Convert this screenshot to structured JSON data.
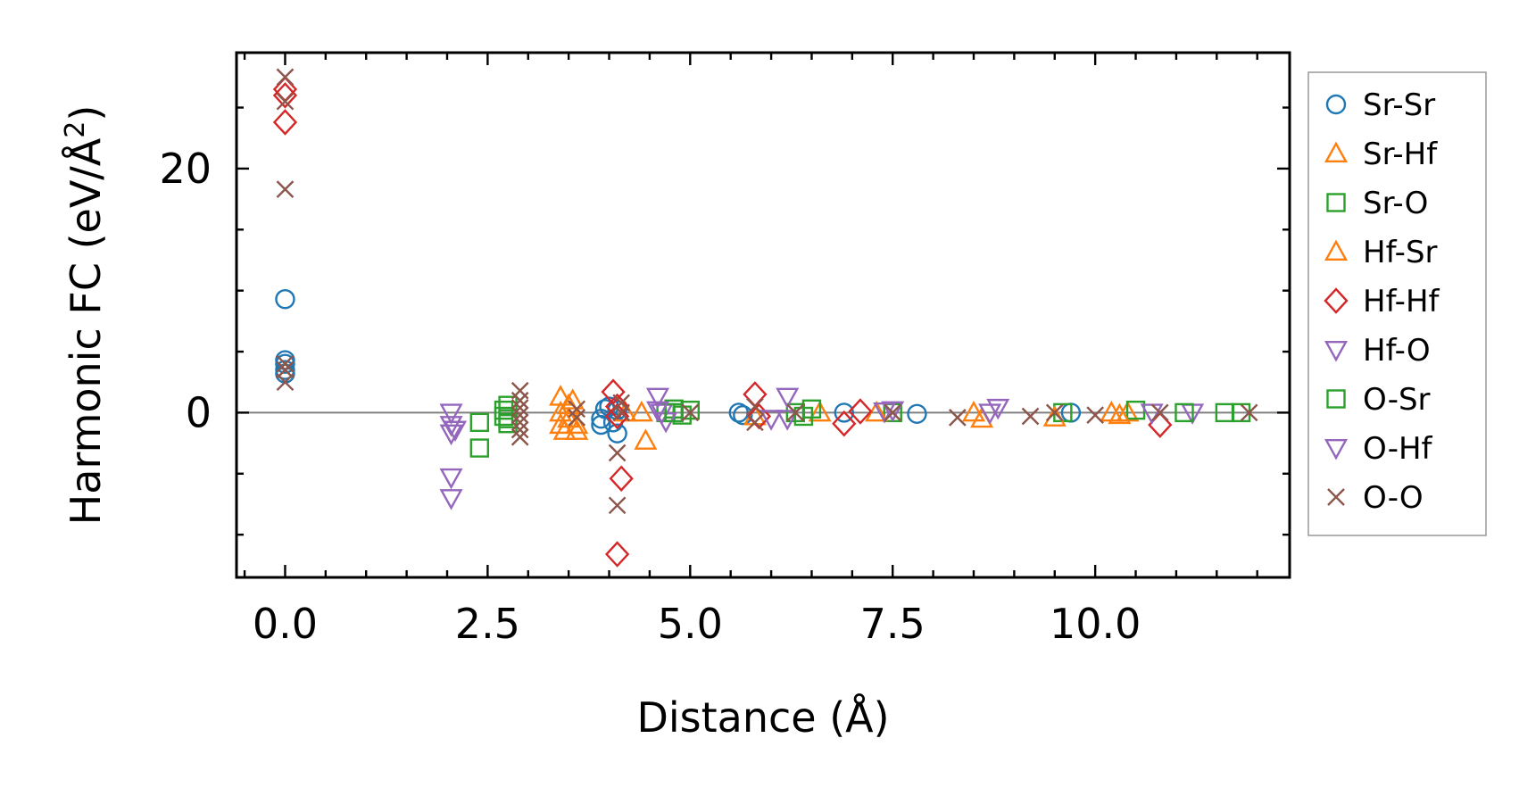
{
  "chart_data": {
    "type": "scatter",
    "xlabel": "Distance (Å)",
    "ylabel_prefix": "Harmonic FC (eV/Å",
    "ylabel_sup": "2",
    "ylabel_suffix": ")",
    "xlim": [
      -0.6,
      12.4
    ],
    "ylim": [
      -13.5,
      29.5
    ],
    "xticks": [
      0.0,
      2.5,
      5.0,
      7.5,
      10.0
    ],
    "xtick_labels": [
      "0.0",
      "2.5",
      "5.0",
      "7.5",
      "10.0"
    ],
    "yticks": [
      0,
      20
    ],
    "ytick_labels": [
      "0",
      "20"
    ],
    "zero_line": 0,
    "legend_position": "outside-right",
    "series": [
      {
        "name": "Sr-Sr",
        "marker": "circle",
        "color": "#1f77b4",
        "points": [
          [
            0,
            9.3
          ],
          [
            0,
            4.3
          ],
          [
            0,
            4.0
          ],
          [
            0,
            3.5
          ],
          [
            0,
            3.2
          ],
          [
            3.9,
            -0.5
          ],
          [
            3.9,
            -1.0
          ],
          [
            3.95,
            0.3
          ],
          [
            4.0,
            0.5
          ],
          [
            4.05,
            -0.8
          ],
          [
            4.1,
            -1.7
          ],
          [
            4.1,
            0.2
          ],
          [
            5.6,
            0.0
          ],
          [
            5.65,
            -0.2
          ],
          [
            6.9,
            0.0
          ],
          [
            7.8,
            -0.1
          ],
          [
            9.7,
            0.0
          ]
        ]
      },
      {
        "name": "Sr-Hf",
        "marker": "triangle-up",
        "color": "#ff7f0e",
        "points": [
          [
            3.4,
            1.3
          ],
          [
            3.4,
            0.0
          ],
          [
            3.45,
            -1.5
          ],
          [
            3.5,
            -0.5
          ],
          [
            3.5,
            0.6
          ],
          [
            3.55,
            1.0
          ],
          [
            3.6,
            -1.0
          ],
          [
            4.4,
            0.0
          ],
          [
            4.45,
            -2.3
          ],
          [
            6.6,
            0.0
          ],
          [
            8.6,
            -0.5
          ],
          [
            10.2,
            0.0
          ],
          [
            10.4,
            0.0
          ]
        ]
      },
      {
        "name": "Sr-O",
        "marker": "square",
        "color": "#2ca02c",
        "points": [
          [
            2.4,
            -0.8
          ],
          [
            2.4,
            -2.9
          ],
          [
            2.7,
            0.2
          ],
          [
            2.7,
            -0.3
          ],
          [
            2.75,
            -0.9
          ],
          [
            2.75,
            0.6
          ],
          [
            4.7,
            0.0
          ],
          [
            4.8,
            0.3
          ],
          [
            4.9,
            -0.2
          ],
          [
            5.0,
            0.2
          ],
          [
            6.3,
            0.0
          ],
          [
            6.5,
            0.3
          ],
          [
            7.5,
            0.0
          ],
          [
            9.6,
            0.0
          ],
          [
            10.5,
            0.2
          ],
          [
            11.8,
            0.0
          ]
        ]
      },
      {
        "name": "Hf-Sr",
        "marker": "triangle-up",
        "color": "#ff7f0e",
        "points": [
          [
            3.4,
            -1.0
          ],
          [
            3.6,
            -1.5
          ],
          [
            4.2,
            0.0
          ],
          [
            5.8,
            -0.3
          ],
          [
            7.3,
            0.0
          ],
          [
            8.5,
            0.0
          ],
          [
            9.5,
            -0.4
          ],
          [
            10.3,
            -0.2
          ]
        ]
      },
      {
        "name": "Hf-Hf",
        "marker": "diamond",
        "color": "#d62728",
        "points": [
          [
            0,
            26.5
          ],
          [
            0,
            26.0
          ],
          [
            0,
            23.8
          ],
          [
            4.05,
            1.7
          ],
          [
            4.1,
            0.5
          ],
          [
            4.1,
            -0.3
          ],
          [
            4.1,
            -11.6
          ],
          [
            4.15,
            -5.4
          ],
          [
            5.8,
            1.5
          ],
          [
            5.85,
            -0.3
          ],
          [
            6.9,
            -0.9
          ],
          [
            7.1,
            0.1
          ],
          [
            10.8,
            -1.0
          ]
        ]
      },
      {
        "name": "Hf-O",
        "marker": "triangle-down",
        "color": "#9467bd",
        "points": [
          [
            2.05,
            0.0
          ],
          [
            2.05,
            -1.0
          ],
          [
            2.05,
            -1.7
          ],
          [
            2.05,
            -5.3
          ],
          [
            2.05,
            -7.0
          ],
          [
            4.6,
            1.3
          ],
          [
            4.65,
            0.0
          ],
          [
            4.7,
            -0.7
          ],
          [
            6.2,
            1.3
          ],
          [
            6.2,
            -0.5
          ],
          [
            7.5,
            0.2
          ],
          [
            8.8,
            0.4
          ],
          [
            11.2,
            0.0
          ]
        ]
      },
      {
        "name": "O-Sr",
        "marker": "square",
        "color": "#2ca02c",
        "points": [
          [
            2.75,
            -0.5
          ],
          [
            4.8,
            0.0
          ],
          [
            6.4,
            -0.3
          ],
          [
            11.1,
            0.0
          ],
          [
            11.6,
            0.0
          ]
        ]
      },
      {
        "name": "O-Hf",
        "marker": "triangle-down",
        "color": "#9467bd",
        "points": [
          [
            2.1,
            -1.4
          ],
          [
            4.6,
            0.2
          ],
          [
            6.0,
            -0.5
          ],
          [
            7.4,
            0.1
          ],
          [
            8.7,
            0.0
          ],
          [
            10.7,
            0.0
          ]
        ]
      },
      {
        "name": "O-O",
        "marker": "x",
        "color": "#8c564b",
        "points": [
          [
            0,
            27.5
          ],
          [
            0,
            25.5
          ],
          [
            0,
            18.3
          ],
          [
            0,
            4.0
          ],
          [
            0,
            3.5
          ],
          [
            0,
            2.5
          ],
          [
            2.9,
            1.8
          ],
          [
            2.9,
            1.0
          ],
          [
            2.9,
            0.4
          ],
          [
            2.9,
            -0.2
          ],
          [
            2.9,
            -0.8
          ],
          [
            2.9,
            -1.4
          ],
          [
            2.9,
            -2.0
          ],
          [
            3.6,
            0.3
          ],
          [
            3.6,
            -0.4
          ],
          [
            4.1,
            -3.3
          ],
          [
            4.1,
            -7.6
          ],
          [
            4.15,
            0.8
          ],
          [
            4.15,
            0.0
          ],
          [
            5.0,
            0.0
          ],
          [
            5.8,
            0.5
          ],
          [
            5.8,
            -0.8
          ],
          [
            6.3,
            0.0
          ],
          [
            7.5,
            0.0
          ],
          [
            8.3,
            -0.4
          ],
          [
            9.2,
            -0.3
          ],
          [
            9.5,
            0.0
          ],
          [
            10.0,
            -0.2
          ],
          [
            10.8,
            0.0
          ],
          [
            11.9,
            0.0
          ]
        ]
      }
    ]
  }
}
